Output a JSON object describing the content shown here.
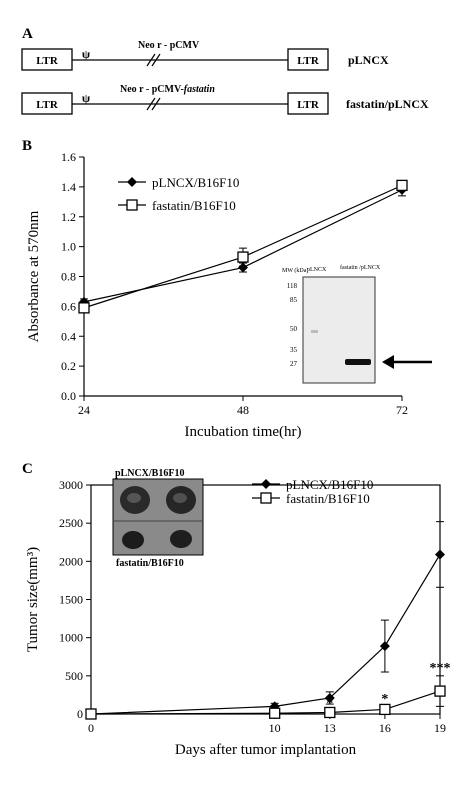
{
  "panels": {
    "a": {
      "label": "A",
      "row1": {
        "ltr_left": "LTR",
        "psi": "ψ",
        "neo_label": "Neo r - pCMV",
        "ltr_right": "LTR",
        "name": "pLNCX"
      },
      "row2": {
        "ltr_left": "LTR",
        "psi": "ψ",
        "neo_label_prefix": "Neo r - pCMV-",
        "neo_label_italic": "fastatin",
        "ltr_right": "LTR",
        "name": "fastatin/pLNCX"
      }
    },
    "b": {
      "label": "B"
    },
    "c": {
      "label": "C"
    }
  },
  "chart_data": [
    {
      "panel": "B",
      "type": "line",
      "xlabel": "Incubation time(hr)",
      "ylabel": "Absorbance at 570nm",
      "categories": [
        "24",
        "48",
        "72"
      ],
      "x": [
        24,
        48,
        72
      ],
      "xlim": [
        24,
        72
      ],
      "ylim": [
        0.0,
        1.6
      ],
      "yticks": [
        "0.0",
        "0.2",
        "0.4",
        "0.6",
        "0.8",
        "1.0",
        "1.2",
        "1.4",
        "1.6"
      ],
      "grid": false,
      "legend_position": "top-left",
      "series": [
        {
          "name": "pLNCX/B16F10",
          "marker": "diamond-filled",
          "values": [
            0.63,
            0.86,
            1.38
          ],
          "errors": [
            0.02,
            0.03,
            0.04
          ]
        },
        {
          "name": "fastatin/B16F10",
          "marker": "square-open",
          "values": [
            0.59,
            0.93,
            1.41
          ],
          "errors": [
            0.02,
            0.06,
            0.03
          ]
        }
      ],
      "inset": {
        "header_mw": "MW (kDa)",
        "header_lane1": "pLNCX",
        "header_lane2": "fastatin /pLNCX",
        "mw_labels": [
          "118",
          "85",
          "50",
          "35",
          "27"
        ]
      }
    },
    {
      "panel": "C",
      "type": "line",
      "xlabel": "Days after tumor implantation",
      "ylabel": "Tumor size(mm³)",
      "categories": [
        "0",
        "10",
        "13",
        "16",
        "19"
      ],
      "x": [
        0,
        10,
        13,
        16,
        19
      ],
      "xlim": [
        0,
        19
      ],
      "ylim": [
        0,
        3000
      ],
      "yticks": [
        "0",
        "500",
        "1000",
        "1500",
        "2000",
        "2500",
        "3000"
      ],
      "grid": false,
      "legend_position": "top-right",
      "series": [
        {
          "name": "pLNCX/B16F10",
          "marker": "diamond-filled",
          "values": [
            0,
            100,
            210,
            890,
            2090
          ],
          "errors": [
            0,
            40,
            80,
            340,
            430
          ]
        },
        {
          "name": "fastatin/B16F10",
          "marker": "square-open",
          "values": [
            0,
            10,
            20,
            60,
            300
          ],
          "errors": [
            0,
            5,
            10,
            30,
            200
          ]
        }
      ],
      "annotations": [
        {
          "text": "*",
          "x": 13
        },
        {
          "text": "*",
          "x": 16
        },
        {
          "text": "***",
          "x": 19
        }
      ],
      "inset": {
        "top_label": "pLNCX/B16F10",
        "bottom_label": "fastatin/B16F10"
      }
    }
  ]
}
